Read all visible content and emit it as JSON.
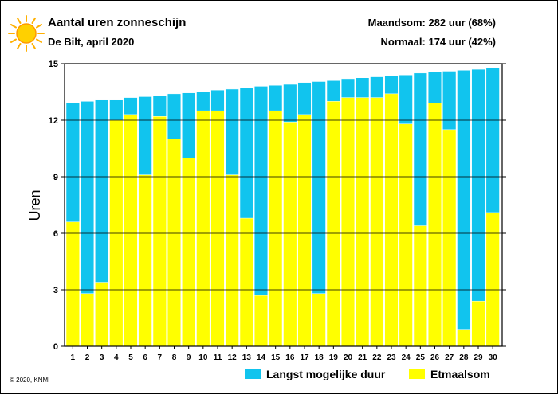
{
  "header": {
    "title": "Aantal uren zonneschijn",
    "subtitle": "De Bilt, april 2020",
    "month_sum": "Maandsom: 282 uur (68%)",
    "normal": "Normaal: 174 uur (42%)",
    "sun_icon": "sun-icon"
  },
  "footer": {
    "copyright": "© 2020, KNMI"
  },
  "colors": {
    "max_duration": "#11c4ee",
    "daily_sum": "#ffff00",
    "bar_outline": "#ffffff",
    "sun": "#ffd000",
    "sun_rays": "#ffb000"
  },
  "chart_data": {
    "type": "bar",
    "ylabel": "Uren",
    "ylim": [
      0,
      15
    ],
    "yticks": [
      0,
      3,
      6,
      9,
      12,
      15
    ],
    "grid": "horizontal at 3, 6, 9, 12",
    "legend_position": "bottom",
    "categories": [
      "1",
      "2",
      "3",
      "4",
      "5",
      "6",
      "7",
      "8",
      "9",
      "10",
      "11",
      "12",
      "13",
      "14",
      "15",
      "16",
      "17",
      "18",
      "19",
      "20",
      "21",
      "22",
      "23",
      "24",
      "25",
      "26",
      "27",
      "28",
      "29",
      "30"
    ],
    "series": [
      {
        "name": "Langst mogelijke duur",
        "values": [
          12.9,
          13.0,
          13.1,
          13.1,
          13.2,
          13.25,
          13.3,
          13.4,
          13.45,
          13.5,
          13.6,
          13.65,
          13.7,
          13.8,
          13.85,
          13.9,
          14.0,
          14.05,
          14.1,
          14.2,
          14.25,
          14.3,
          14.35,
          14.4,
          14.5,
          14.55,
          14.6,
          14.65,
          14.7,
          14.8
        ]
      },
      {
        "name": "Etmaalsom",
        "values": [
          6.6,
          2.8,
          3.4,
          12.0,
          12.3,
          9.1,
          12.2,
          11.0,
          10.0,
          12.5,
          12.5,
          9.1,
          6.8,
          2.7,
          12.5,
          11.9,
          12.3,
          2.8,
          13.0,
          13.2,
          13.2,
          13.2,
          13.4,
          11.8,
          6.4,
          12.9,
          11.5,
          0.9,
          2.4,
          7.1
        ]
      }
    ]
  }
}
